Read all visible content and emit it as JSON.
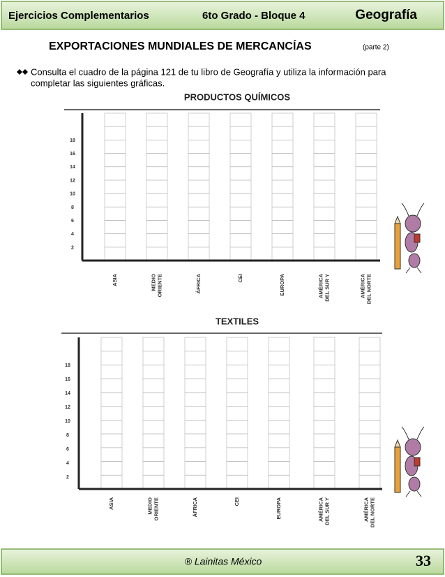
{
  "header": {
    "left": "Ejercicios Complementarios",
    "middle": "6to Grado - Bloque  4",
    "right": "Geografía"
  },
  "title": "EXPORTACIONES MUNDIALES DE MERCANCÍAS",
  "subtitle": "(parte 2)",
  "instruction": [
    "Consulta el cuadro de la página 121 de tu libro de Geografía y utiliza la información para",
    "completar las siguientes gráficas."
  ],
  "charts": [
    {
      "title": "PRODUCTOS QUÍMICOS",
      "y_labels": [
        "18",
        "16",
        "14",
        "12",
        "10",
        "8",
        "6",
        "4",
        "2"
      ],
      "categories": [
        [
          "ASIA"
        ],
        [
          "MEDIO",
          "ORIENTE"
        ],
        [
          "ÁFRICA"
        ],
        [
          "CEI"
        ],
        [
          "EUROPA"
        ],
        [
          "AMÉRICA",
          "DEL SUR Y"
        ],
        [
          "AMÉRICA",
          "DEL NORTE"
        ]
      ]
    },
    {
      "title": "TEXTILES",
      "y_labels": [
        "18",
        "16",
        "14",
        "12",
        "10",
        "8",
        "6",
        "4",
        "2"
      ],
      "categories": [
        [
          "ASIA"
        ],
        [
          "MEDIO",
          "ORIENTE"
        ],
        [
          "ÁFRICA"
        ],
        [
          "CEI"
        ],
        [
          "EUROPA"
        ],
        [
          "AMÉRICA",
          "DEL SUR Y"
        ],
        [
          "AMÉRICA",
          "DEL NORTE"
        ]
      ]
    }
  ],
  "footer": {
    "credit": "® Lainitas México",
    "page": "33"
  }
}
